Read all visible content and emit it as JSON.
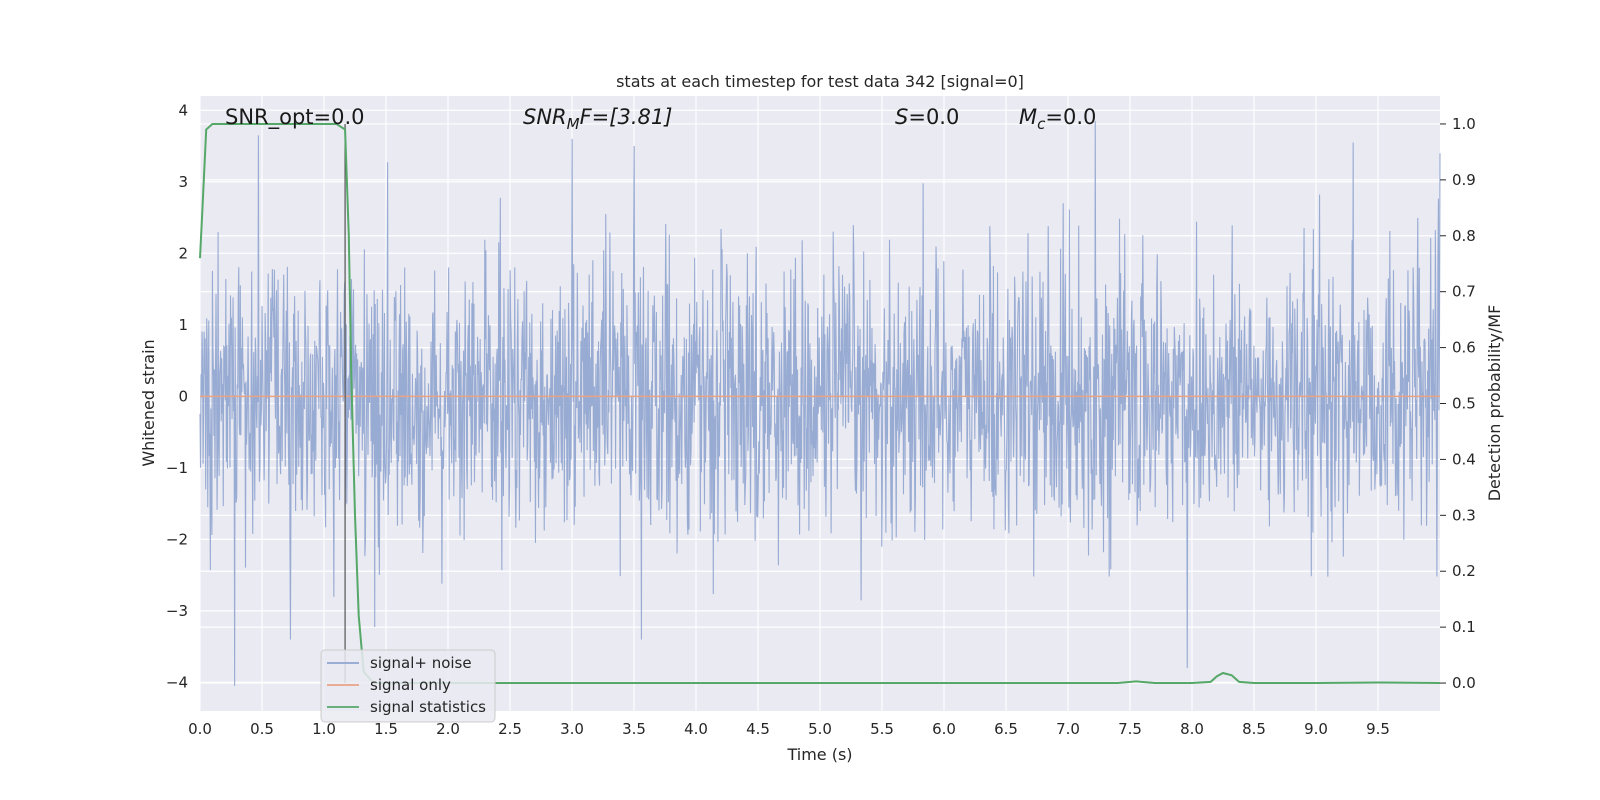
{
  "chart_data": {
    "type": "line",
    "title": "stats at each timestep for test data 342 [signal=0]",
    "xlabel": "Time (s)",
    "ylabel_left": "Whitened strain",
    "ylabel_right": "Detection probability/MF",
    "xlim": [
      0.0,
      10.0
    ],
    "ylim_left": [
      -4.4,
      4.2
    ],
    "ylim_right": [
      -0.05,
      1.05
    ],
    "x_ticks": [
      "0.0",
      "0.5",
      "1.0",
      "1.5",
      "2.0",
      "2.5",
      "3.0",
      "3.5",
      "4.0",
      "4.5",
      "5.0",
      "5.5",
      "6.0",
      "6.5",
      "7.0",
      "7.5",
      "8.0",
      "8.5",
      "9.0",
      "9.5"
    ],
    "y_left_ticks": [
      "4",
      "3",
      "2",
      "1",
      "0",
      "−1",
      "−2",
      "−3",
      "−4"
    ],
    "y_right_ticks": [
      "1.0",
      "0.9",
      "0.8",
      "0.7",
      "0.6",
      "0.5",
      "0.4",
      "0.3",
      "0.2",
      "0.1",
      "0.0"
    ],
    "grid": true,
    "legend_position": "lower-left",
    "annotations": {
      "snr_opt": "SNR_opt=0.0",
      "snr_mf_main": "SNR",
      "snr_mf_sub": "M",
      "snr_mf_rest": "F=[3.81]",
      "s_main": "S",
      "s_rest": "=0.0",
      "mc_main": "M",
      "mc_sub": "c",
      "mc_rest": "=0.0"
    },
    "noise_envelope": {
      "typical_range": [
        -1.7,
        1.5
      ],
      "extreme_peaks": [
        {
          "x": 0.28,
          "y": -4.05
        },
        {
          "x": 0.47,
          "y": 3.65
        },
        {
          "x": 3.0,
          "y": 3.6
        },
        {
          "x": 3.5,
          "y": 3.5
        },
        {
          "x": 7.22,
          "y": 3.85
        },
        {
          "x": 7.96,
          "y": -3.8
        },
        {
          "x": 9.3,
          "y": 3.55
        }
      ]
    },
    "series": [
      {
        "name": "signal+ noise",
        "axis": "left",
        "color": "#8fa4cf",
        "kind": "noise"
      },
      {
        "name": "signal only",
        "axis": "left",
        "color": "#e8a385",
        "x": [
          0.0,
          10.0
        ],
        "y": [
          0.0,
          0.0
        ]
      },
      {
        "name": "signal statistics",
        "axis": "right",
        "color": "#55a868",
        "x": [
          0.0,
          0.02,
          0.05,
          0.1,
          0.2,
          0.4,
          0.6,
          0.8,
          1.0,
          1.1,
          1.17,
          1.2,
          1.22,
          1.25,
          1.28,
          1.32,
          1.4,
          1.6,
          2.0,
          3.0,
          4.0,
          5.0,
          6.0,
          7.0,
          7.4,
          7.55,
          7.7,
          8.0,
          8.15,
          8.2,
          8.25,
          8.32,
          8.38,
          8.5,
          9.0,
          9.5,
          10.0
        ],
        "y": [
          0.76,
          0.85,
          0.99,
          1.0,
          1.0,
          1.0,
          1.0,
          1.0,
          1.0,
          1.0,
          0.99,
          0.8,
          0.55,
          0.3,
          0.12,
          0.02,
          0.0,
          0.0,
          0.0,
          0.0,
          0.0,
          0.0,
          0.0,
          0.0,
          0.0,
          0.003,
          0.0,
          0.0,
          0.002,
          0.012,
          0.018,
          0.014,
          0.002,
          0.0,
          0.0,
          0.001,
          0.0
        ]
      }
    ],
    "colors": {
      "background": "#eaeaf2",
      "grid": "#ffffff",
      "noise": "#8fa4cf",
      "signal_only": "#e8a385",
      "statistics": "#55a868",
      "vertical_marker": "#555555"
    }
  }
}
